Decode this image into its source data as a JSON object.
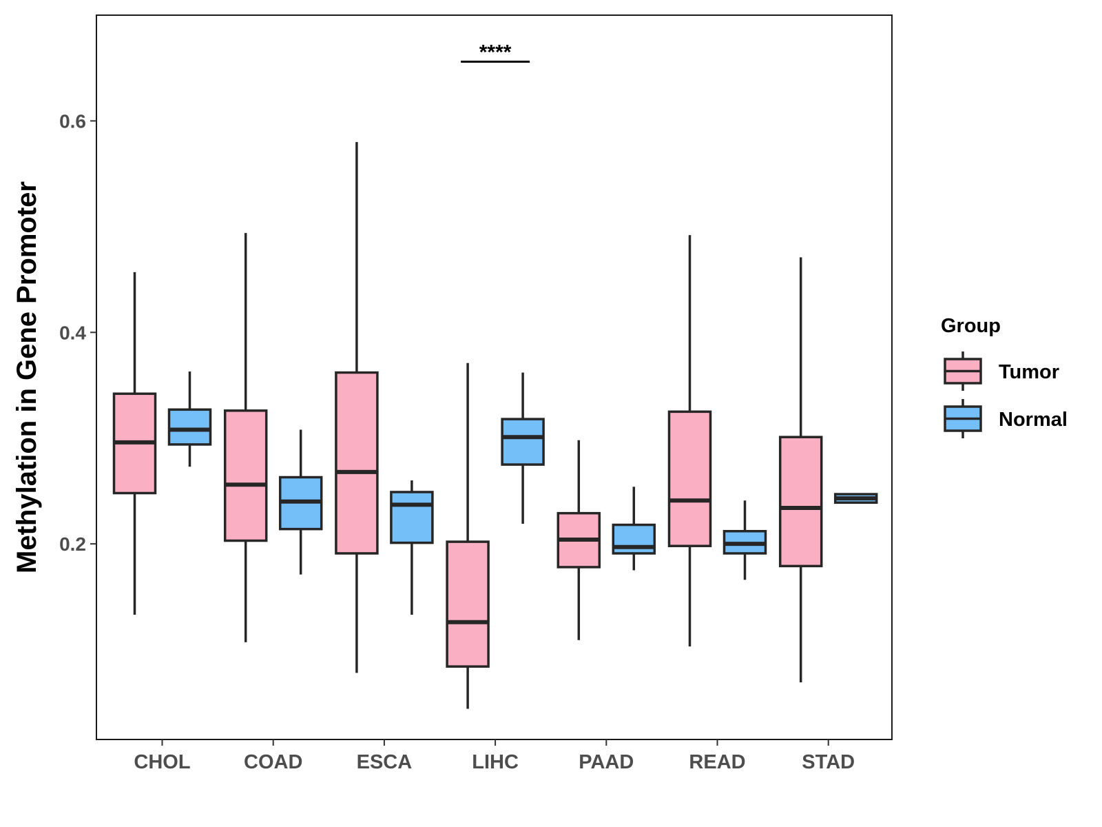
{
  "chart_data": {
    "type": "box",
    "title": "",
    "xlabel": "",
    "ylabel": "Methylation in Gene Promoter",
    "ylim": [
      0.015,
      0.7
    ],
    "yticks": [
      "0.2",
      "0.4",
      "0.6"
    ],
    "ytick_values": [
      0.2,
      0.4,
      0.6
    ],
    "categories": [
      "CHOL",
      "COAD",
      "ESCA",
      "LIHC",
      "PAAD",
      "READ",
      "STAD"
    ],
    "legend": {
      "title": "Group",
      "position": "right",
      "entries": [
        {
          "name": "Tumor",
          "color": "#FBAFC2"
        },
        {
          "name": "Normal",
          "color": "#75BFF8"
        }
      ]
    },
    "series": [
      {
        "name": "Tumor",
        "color": "#FBAFC2",
        "boxes": [
          {
            "category": "CHOL",
            "whisker_low": 0.133,
            "q1": 0.248,
            "median": 0.296,
            "q3": 0.342,
            "whisker_high": 0.457
          },
          {
            "category": "COAD",
            "whisker_low": 0.107,
            "q1": 0.203,
            "median": 0.256,
            "q3": 0.326,
            "whisker_high": 0.494
          },
          {
            "category": "ESCA",
            "whisker_low": 0.078,
            "q1": 0.191,
            "median": 0.268,
            "q3": 0.362,
            "whisker_high": 0.58
          },
          {
            "category": "LIHC",
            "whisker_low": 0.044,
            "q1": 0.084,
            "median": 0.126,
            "q3": 0.202,
            "whisker_high": 0.371
          },
          {
            "category": "PAAD",
            "whisker_low": 0.109,
            "q1": 0.178,
            "median": 0.204,
            "q3": 0.229,
            "whisker_high": 0.298
          },
          {
            "category": "READ",
            "whisker_low": 0.103,
            "q1": 0.198,
            "median": 0.241,
            "q3": 0.325,
            "whisker_high": 0.492
          },
          {
            "category": "STAD",
            "whisker_low": 0.069,
            "q1": 0.179,
            "median": 0.234,
            "q3": 0.301,
            "whisker_high": 0.471
          }
        ]
      },
      {
        "name": "Normal",
        "color": "#75BFF8",
        "boxes": [
          {
            "category": "CHOL",
            "whisker_low": 0.273,
            "q1": 0.294,
            "median": 0.308,
            "q3": 0.327,
            "whisker_high": 0.363
          },
          {
            "category": "COAD",
            "whisker_low": 0.171,
            "q1": 0.214,
            "median": 0.24,
            "q3": 0.263,
            "whisker_high": 0.308
          },
          {
            "category": "ESCA",
            "whisker_low": 0.133,
            "q1": 0.201,
            "median": 0.237,
            "q3": 0.249,
            "whisker_high": 0.26
          },
          {
            "category": "LIHC",
            "whisker_low": 0.219,
            "q1": 0.275,
            "median": 0.301,
            "q3": 0.318,
            "whisker_high": 0.362
          },
          {
            "category": "PAAD",
            "whisker_low": 0.175,
            "q1": 0.191,
            "median": 0.197,
            "q3": 0.218,
            "whisker_high": 0.254
          },
          {
            "category": "READ",
            "whisker_low": 0.166,
            "q1": 0.191,
            "median": 0.2,
            "q3": 0.212,
            "whisker_high": 0.241
          },
          {
            "category": "STAD",
            "whisker_low": 0.238,
            "q1": 0.239,
            "median": 0.243,
            "q3": 0.247,
            "whisker_high": 0.248
          }
        ]
      }
    ],
    "annotations": [
      {
        "category": "LIHC",
        "text": "****",
        "y": 0.656
      }
    ],
    "grid": false
  }
}
